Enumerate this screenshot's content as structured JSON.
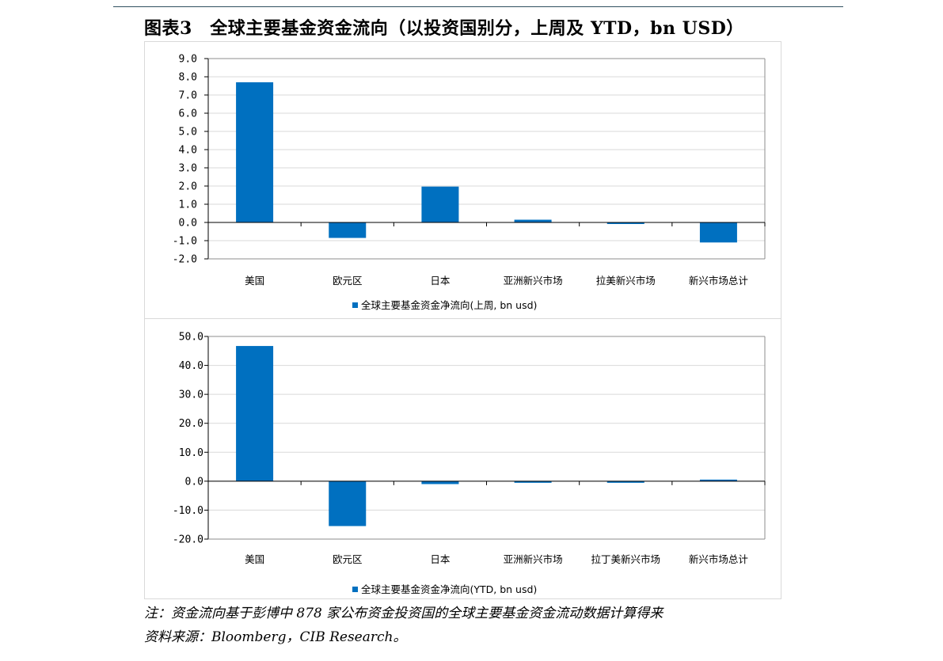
{
  "figure_title": "图表3　全球主要基金资金流向（以投资国别分，上周及 YTD，bn USD）",
  "note": "注：资金流向基于彭博中 878 家公布资金投资国的全球主要基金资金流动数据计算得来",
  "source": "资料来源：Bloomberg，CIB Research。",
  "chart_data": [
    {
      "type": "bar",
      "categories": [
        "美国",
        "欧元区",
        "日本",
        "亚洲新兴市场",
        "拉美新兴市场",
        "新兴市场总计"
      ],
      "series": [
        {
          "name": "全球主要基金资金净流向(上周, bn usd)",
          "values": [
            7.7,
            -0.85,
            1.97,
            0.15,
            -0.05,
            -1.1
          ]
        }
      ],
      "yticks": [
        "9.0",
        "8.0",
        "7.0",
        "6.0",
        "5.0",
        "4.0",
        "3.0",
        "2.0",
        "1.0",
        "0.0",
        "-1.0",
        "-2.0"
      ],
      "ylim": [
        -2,
        9
      ],
      "color": "#0070c0",
      "grid": true,
      "legend": "bottom"
    },
    {
      "type": "bar",
      "categories": [
        "美国",
        "欧元区",
        "日本",
        "亚洲新兴市场",
        "拉丁美新兴市场",
        "新兴市场总计"
      ],
      "series": [
        {
          "name": "全球主要基金资金净流向(YTD, bn usd)",
          "values": [
            46.7,
            -15.5,
            -1.0,
            -0.3,
            -0.1,
            0.0
          ]
        }
      ],
      "yticks": [
        "50.0",
        "40.0",
        "30.0",
        "20.0",
        "10.0",
        "0.0",
        "-10.0",
        "-20.0"
      ],
      "ylim": [
        -20,
        50
      ],
      "color": "#0070c0",
      "grid": true,
      "legend": "bottom"
    }
  ]
}
